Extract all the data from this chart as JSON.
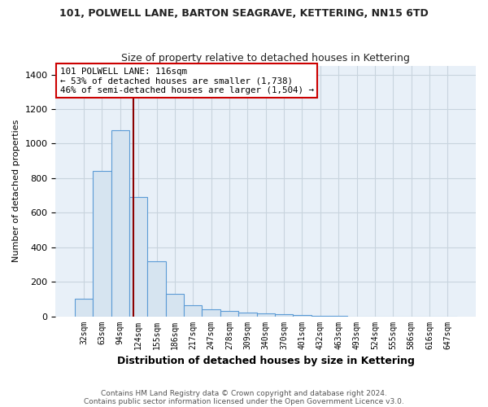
{
  "title1": "101, POLWELL LANE, BARTON SEAGRAVE, KETTERING, NN15 6TD",
  "title2": "Size of property relative to detached houses in Kettering",
  "xlabel": "Distribution of detached houses by size in Kettering",
  "ylabel": "Number of detached properties",
  "footer1": "Contains HM Land Registry data © Crown copyright and database right 2024.",
  "footer2": "Contains public sector information licensed under the Open Government Licence v3.0.",
  "annotation_line1": "101 POLWELL LANE: 116sqm",
  "annotation_line2": "← 53% of detached houses are smaller (1,738)",
  "annotation_line3": "46% of semi-detached houses are larger (1,504) →",
  "bar_labels": [
    "32sqm",
    "63sqm",
    "94sqm",
    "124sqm",
    "155sqm",
    "186sqm",
    "217sqm",
    "247sqm",
    "278sqm",
    "309sqm",
    "340sqm",
    "370sqm",
    "401sqm",
    "432sqm",
    "463sqm",
    "493sqm",
    "524sqm",
    "555sqm",
    "586sqm",
    "616sqm",
    "647sqm"
  ],
  "bar_values": [
    100,
    840,
    1080,
    690,
    320,
    130,
    65,
    40,
    30,
    20,
    15,
    10,
    5,
    2,
    1,
    0,
    0,
    0,
    0,
    0,
    0
  ],
  "bar_color": "#d6e4f0",
  "bar_edge_color": "#5b9bd5",
  "marker_color": "#8b0000",
  "ylim": [
    0,
    1450
  ],
  "yticks": [
    0,
    200,
    400,
    600,
    800,
    1000,
    1200,
    1400
  ],
  "annotation_box_bg": "#ffffff",
  "annotation_box_edge": "#cc0000",
  "grid_color": "#c8d4de",
  "background_color": "#ffffff",
  "plot_bg_color": "#e8f0f8"
}
